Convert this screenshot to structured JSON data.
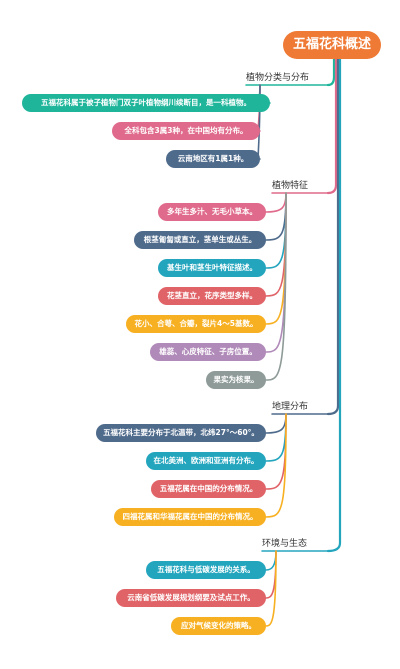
{
  "root": {
    "label": "五福花科概述"
  },
  "colors": {
    "root": "#ef7a36",
    "green": "#1fb59b",
    "pink": "#e06a8b",
    "navy": "#4f6b8c",
    "teal": "#23a5be",
    "red": "#e06367",
    "yellow": "#f7b021",
    "mauve": "#b08ab8",
    "gray": "#8e9b98"
  },
  "branches": [
    {
      "label": "植物分类与分布",
      "leaves": [
        {
          "label": "五福花科属于被子植物门双子叶植物纲川续断目，是一科植物。",
          "color": "green"
        },
        {
          "label": "全科包含3属3种，在中国均有分布。",
          "color": "pink"
        },
        {
          "label": "云南地区有1属1种。",
          "color": "navy"
        }
      ]
    },
    {
      "label": "植物特征",
      "leaves": [
        {
          "label": "多年生多汁、无毛小草本。",
          "color": "pink"
        },
        {
          "label": "根茎匍匐或直立，茎单生或丛生。",
          "color": "navy"
        },
        {
          "label": "基生叶和茎生叶特征描述。",
          "color": "teal"
        },
        {
          "label": "花茎直立，花序类型多样。",
          "color": "red"
        },
        {
          "label": "花小、合萼、合瓣，裂片4～5基数。",
          "color": "yellow"
        },
        {
          "label": "雄蕊、心皮特征、子房位置。",
          "color": "mauve"
        },
        {
          "label": "果实为核果。",
          "color": "gray"
        }
      ]
    },
    {
      "label": "地理分布",
      "leaves": [
        {
          "label": "五福花科主要分布于北温带，北纬27°～60°。",
          "color": "navy"
        },
        {
          "label": "在北美洲、欧洲和亚洲有分布。",
          "color": "teal"
        },
        {
          "label": "五福花属在中国的分布情况。",
          "color": "red"
        },
        {
          "label": "四福花属和华福花属在中国的分布情况。",
          "color": "yellow"
        }
      ]
    },
    {
      "label": "环境与生态",
      "leaves": [
        {
          "label": "五福花科与低碳发展的关系。",
          "color": "teal"
        },
        {
          "label": "云南省低碳发展规划纲要及试点工作。",
          "color": "red"
        },
        {
          "label": "应对气候变化的策略。",
          "color": "yellow"
        }
      ]
    }
  ]
}
